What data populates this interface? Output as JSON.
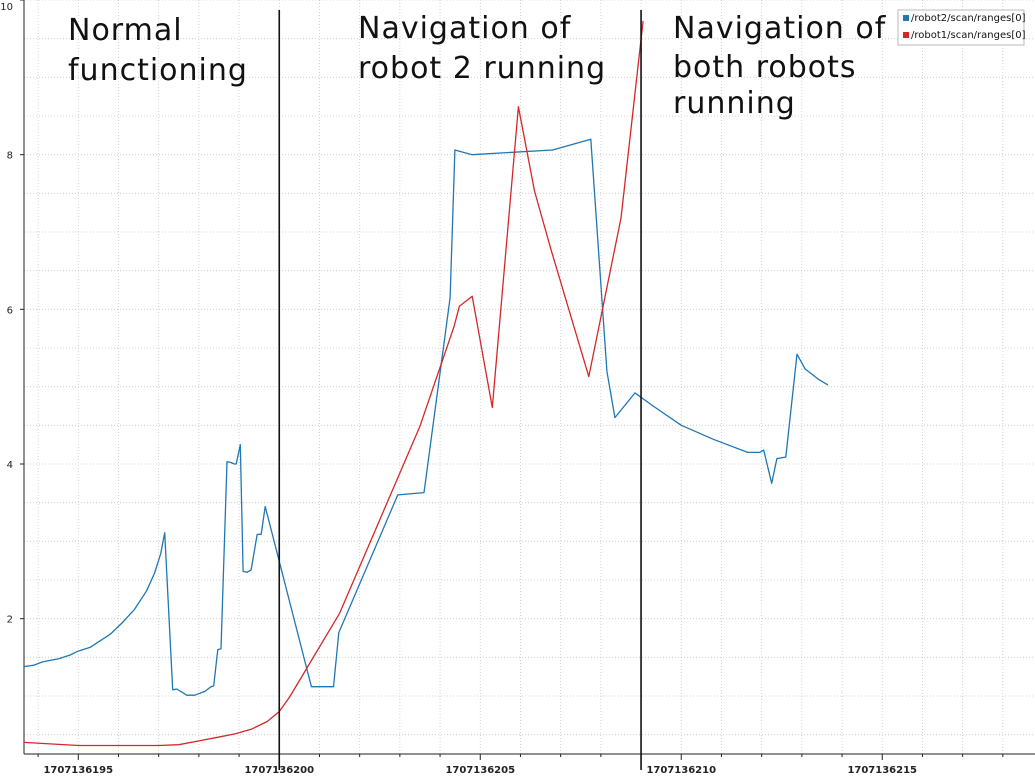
{
  "chart_data": {
    "type": "line",
    "title": "",
    "xlabel": "",
    "ylabel": "",
    "xlim": [
      1707136193.65,
      1707136218.8
    ],
    "ylim": [
      0.25,
      10.0
    ],
    "x_ticks": [
      {
        "value": 1707136195,
        "label": "1707136195"
      },
      {
        "value": 1707136200,
        "label": "1707136200"
      },
      {
        "value": 1707136205,
        "label": "1707136205"
      },
      {
        "value": 1707136210,
        "label": "1707136210"
      },
      {
        "value": 1707136215,
        "label": "1707136215"
      }
    ],
    "y_ticks": [
      {
        "value": 2,
        "label": "2"
      },
      {
        "value": 4,
        "label": "4"
      },
      {
        "value": 6,
        "label": "6"
      },
      {
        "value": 8,
        "label": "8"
      },
      {
        "value": 10,
        "label": "10"
      }
    ],
    "grid": true,
    "legend_position": "top-right",
    "series": [
      {
        "name": "/robot2/scan/ranges[0]",
        "color": "#1f77b4",
        "x": [
          1707136193.65,
          1707136193.9,
          1707136194.1,
          1707136194.3,
          1707136194.5,
          1707136194.8,
          1707136195.0,
          1707136195.3,
          1707136195.5,
          1707136195.8,
          1707136196.1,
          1707136196.4,
          1707136196.7,
          1707136196.9,
          1707136197.05,
          1707136197.15,
          1707136197.35,
          1707136197.45,
          1707136197.7,
          1707136197.9,
          1707136198.15,
          1707136198.3,
          1707136198.37,
          1707136198.47,
          1707136198.55,
          1707136198.7,
          1707136198.8,
          1707136198.88,
          1707136198.93,
          1707136199.03,
          1707136199.1,
          1707136199.2,
          1707136199.3,
          1707136199.45,
          1707136199.55,
          1707136199.65,
          1707136200.8,
          1707136201.0,
          1707136201.35,
          1707136201.48,
          1707136202.95,
          1707136203.6,
          1707136204.25,
          1707136204.37,
          1707136204.8,
          1707136205.8,
          1707136206.8,
          1707136207.75,
          1707136208.15,
          1707136208.35,
          1707136208.85,
          1707136209.3,
          1707136210.0,
          1707136210.8,
          1707136211.65,
          1707136211.95,
          1707136212.05,
          1707136212.25,
          1707136212.38,
          1707136212.6,
          1707136212.88,
          1707136213.08,
          1707136213.4,
          1707136213.65
        ],
        "y": [
          1.38,
          1.4,
          1.44,
          1.46,
          1.48,
          1.53,
          1.58,
          1.63,
          1.7,
          1.8,
          1.95,
          2.12,
          2.36,
          2.59,
          2.84,
          3.11,
          1.08,
          1.09,
          1.01,
          1.01,
          1.06,
          1.12,
          1.13,
          1.6,
          1.61,
          4.03,
          4.02,
          4.0,
          4.0,
          4.25,
          2.61,
          2.6,
          2.63,
          3.09,
          3.09,
          3.45,
          1.12,
          1.12,
          1.12,
          1.82,
          3.6,
          3.63,
          6.15,
          8.06,
          8.0,
          8.03,
          8.06,
          8.2,
          5.2,
          4.6,
          4.92,
          4.75,
          4.5,
          4.32,
          4.15,
          4.15,
          4.18,
          3.75,
          4.07,
          4.09,
          5.42,
          5.23,
          5.1,
          5.02
        ]
      },
      {
        "name": "/robot1/scan/ranges[0]",
        "color": "#d62728",
        "x": [
          1707136193.65,
          1707136194.3,
          1707136195.0,
          1707136196.0,
          1707136197.0,
          1707136197.5,
          1707136198.0,
          1707136198.4,
          1707136198.9,
          1707136199.3,
          1707136199.7,
          1707136200.0,
          1707136200.25,
          1707136201.5,
          1707136202.5,
          1707136203.5,
          1707136204.35,
          1707136204.48,
          1707136204.8,
          1707136205.3,
          1707136205.95,
          1707136206.35,
          1707136206.75,
          1707136207.7,
          1707136208.5,
          1707136209.05
        ],
        "y": [
          0.4,
          0.38,
          0.36,
          0.36,
          0.36,
          0.37,
          0.42,
          0.46,
          0.51,
          0.57,
          0.67,
          0.8,
          0.98,
          2.07,
          3.28,
          4.49,
          5.78,
          6.04,
          6.17,
          4.73,
          8.62,
          7.53,
          6.79,
          5.13,
          7.18,
          9.73
        ]
      }
    ],
    "vertical_lines": [
      {
        "x": 1707136200.0
      },
      {
        "x": 1707136209.0
      }
    ],
    "annotations": [
      {
        "lines": [
          "Normal",
          "functioning"
        ]
      },
      {
        "lines": [
          "Navigation of",
          "robot 2 running"
        ]
      },
      {
        "lines": [
          "Navigation of",
          "both robots",
          "running"
        ]
      }
    ]
  }
}
